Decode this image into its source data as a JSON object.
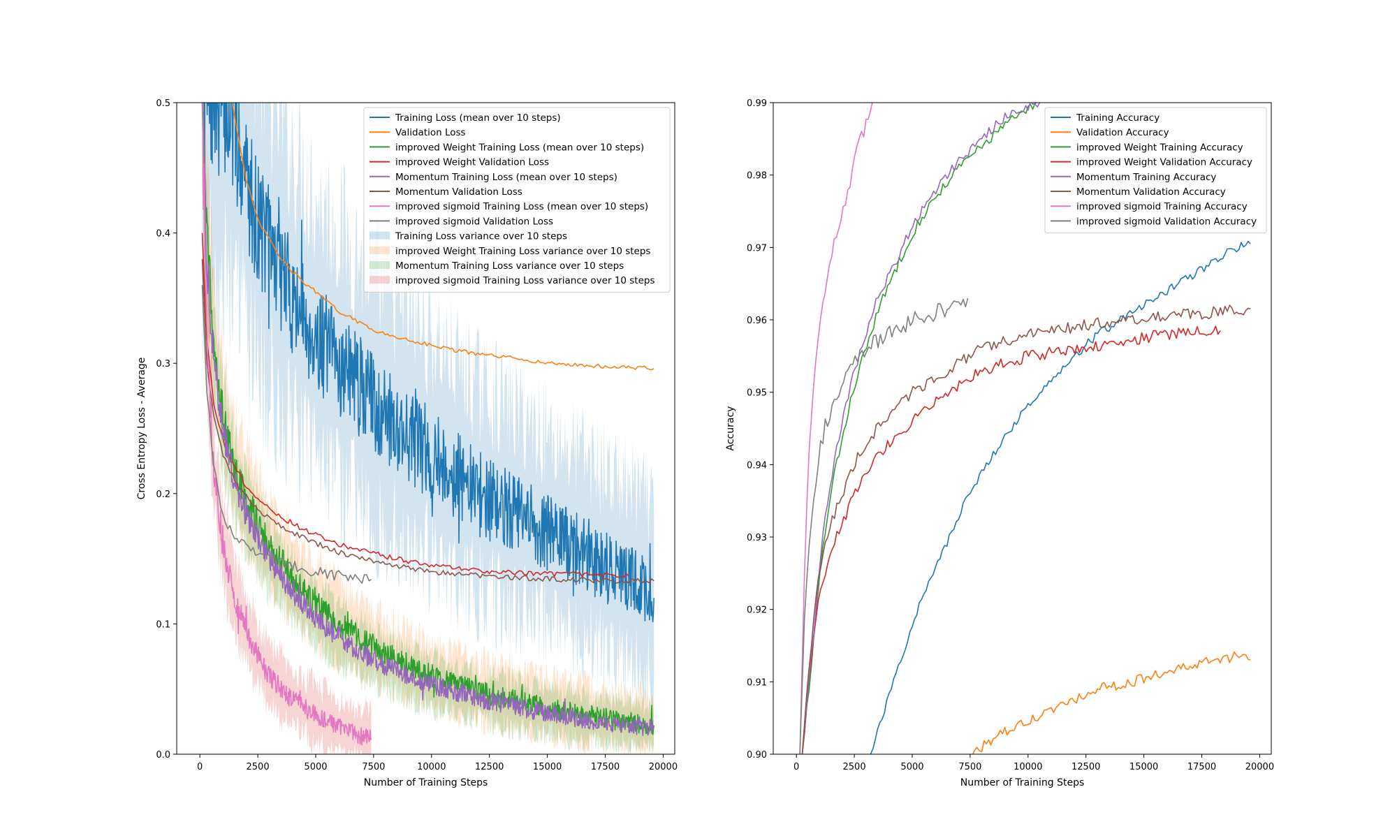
{
  "chart_data": [
    {
      "type": "line",
      "xlabel": "Number of Training Steps",
      "ylabel": "Cross Entropy Loss - Average",
      "xlim": [
        -1000,
        20500
      ],
      "ylim": [
        0,
        0.5
      ],
      "xticks": [
        0,
        2500,
        5000,
        7500,
        10000,
        12500,
        15000,
        17500,
        20000
      ],
      "yticks": [
        0.0,
        0.1,
        0.2,
        0.3,
        0.4,
        0.5
      ],
      "legend_position": "top-right",
      "legend": [
        "Training Loss (mean over 10 steps)",
        "Validation Loss",
        "improved Weight Training Loss (mean over 10 steps)",
        "improved Weight Validation Loss",
        "Momentum Training Loss (mean over 10 steps)",
        "Momentum Validation Loss",
        "improved sigmoid Training Loss (mean over 10 steps)",
        "improved sigmoid Validation Loss",
        "Training Loss variance over 10 steps",
        "improved Weight Training Loss variance over 10 steps",
        "Momentum Training Loss variance over 10 steps",
        "improved sigmoid Training Loss variance over 10 steps"
      ],
      "series": [
        {
          "name": "Training Loss (mean over 10 steps)",
          "color": "#1f77b4",
          "kind": "noisy",
          "x": [
            100,
            500,
            1000,
            1500,
            2000,
            2500,
            3000,
            4000,
            5000,
            6000,
            7000,
            8000,
            9000,
            10000,
            11000,
            12000,
            13000,
            14000,
            15000,
            16000,
            17000,
            18000,
            19000,
            19600
          ],
          "y": [
            0.5,
            0.5,
            0.5,
            0.48,
            0.44,
            0.41,
            0.39,
            0.35,
            0.32,
            0.3,
            0.28,
            0.26,
            0.245,
            0.23,
            0.215,
            0.2,
            0.19,
            0.18,
            0.17,
            0.16,
            0.15,
            0.14,
            0.13,
            0.12
          ],
          "noise": 0.035
        },
        {
          "name": "Validation Loss",
          "color": "#ff7f0e",
          "kind": "line",
          "x": [
            1400,
            1600,
            1800,
            2000,
            2500,
            3000,
            3500,
            4000,
            4500,
            5000,
            5500,
            6000,
            6500,
            7000,
            7500,
            8000,
            9000,
            10000,
            11000,
            12000,
            13000,
            14000,
            15000,
            16000,
            17000,
            18000,
            19000,
            19600
          ],
          "y": [
            0.5,
            0.48,
            0.46,
            0.44,
            0.41,
            0.395,
            0.38,
            0.37,
            0.362,
            0.355,
            0.347,
            0.34,
            0.335,
            0.33,
            0.326,
            0.322,
            0.318,
            0.314,
            0.31,
            0.307,
            0.305,
            0.303,
            0.3,
            0.299,
            0.298,
            0.297,
            0.2965,
            0.296
          ],
          "noise": 0.0015
        },
        {
          "name": "improved Weight Training Loss (mean over 10 steps)",
          "color": "#2ca02c",
          "kind": "noisy",
          "x": [
            100,
            300,
            600,
            1000,
            1500,
            2000,
            3000,
            4000,
            5000,
            6000,
            7000,
            8000,
            9000,
            10000,
            12000,
            14000,
            16000,
            18000,
            19600
          ],
          "y": [
            0.5,
            0.4,
            0.32,
            0.26,
            0.22,
            0.195,
            0.16,
            0.135,
            0.115,
            0.1,
            0.088,
            0.077,
            0.068,
            0.06,
            0.048,
            0.04,
            0.032,
            0.026,
            0.022
          ],
          "noise": 0.014
        },
        {
          "name": "improved Weight Validation Loss",
          "color": "#d62728",
          "kind": "line",
          "x": [
            100,
            300,
            600,
            1000,
            1500,
            2000,
            2500,
            3000,
            4000,
            5000,
            6000,
            7000,
            8000,
            9000,
            10000,
            12000,
            14000,
            16000,
            18000,
            18500
          ],
          "y": [
            0.4,
            0.32,
            0.27,
            0.24,
            0.22,
            0.206,
            0.196,
            0.188,
            0.177,
            0.168,
            0.161,
            0.156,
            0.152,
            0.148,
            0.145,
            0.141,
            0.139,
            0.138,
            0.137,
            0.137
          ],
          "noise": 0.002
        },
        {
          "name": "Momentum Training Loss (mean over 10 steps)",
          "color": "#9467bd",
          "kind": "noisy",
          "x": [
            100,
            300,
            600,
            1000,
            1500,
            2000,
            3000,
            4000,
            5000,
            6000,
            7000,
            8000,
            9000,
            10000,
            12000,
            14000,
            16000,
            18000,
            19600
          ],
          "y": [
            0.5,
            0.38,
            0.3,
            0.25,
            0.21,
            0.185,
            0.15,
            0.125,
            0.105,
            0.09,
            0.078,
            0.068,
            0.06,
            0.053,
            0.043,
            0.035,
            0.028,
            0.023,
            0.02
          ],
          "noise": 0.012
        },
        {
          "name": "Momentum Validation Loss",
          "color": "#8c564b",
          "kind": "line",
          "x": [
            100,
            300,
            600,
            1000,
            1500,
            2000,
            2500,
            3000,
            4000,
            5000,
            6000,
            7000,
            8000,
            9000,
            10000,
            12000,
            14000,
            16000,
            18000,
            19600
          ],
          "y": [
            0.38,
            0.3,
            0.26,
            0.23,
            0.21,
            0.198,
            0.188,
            0.181,
            0.17,
            0.162,
            0.155,
            0.15,
            0.146,
            0.143,
            0.14,
            0.137,
            0.135,
            0.134,
            0.133,
            0.133
          ],
          "noise": 0.002
        },
        {
          "name": "improved sigmoid Training Loss (mean over 10 steps)",
          "color": "#e377c2",
          "kind": "noisy",
          "x": [
            100,
            300,
            600,
            1000,
            1500,
            2000,
            2500,
            3000,
            4000,
            5000,
            6000,
            7000,
            7400
          ],
          "y": [
            0.5,
            0.32,
            0.22,
            0.16,
            0.12,
            0.095,
            0.075,
            0.06,
            0.042,
            0.03,
            0.02,
            0.014,
            0.012
          ],
          "noise": 0.013
        },
        {
          "name": "improved sigmoid Validation Loss",
          "color": "#7f7f7f",
          "kind": "line",
          "x": [
            100,
            300,
            600,
            900,
            1200,
            1500,
            2000,
            2500,
            3000,
            4000,
            5000,
            6000,
            7000,
            7400
          ],
          "y": [
            0.36,
            0.28,
            0.22,
            0.19,
            0.175,
            0.168,
            0.16,
            0.155,
            0.15,
            0.145,
            0.14,
            0.137,
            0.135,
            0.134
          ],
          "noise": 0.004
        }
      ],
      "bands": [
        {
          "name": "Training Loss variance over 10 steps",
          "color": "#1f77b4",
          "of": 0,
          "spread": 0.13
        },
        {
          "name": "improved Weight Training Loss variance over 10 steps",
          "color": "#ff7f0e",
          "of": 2,
          "spread": 0.06
        },
        {
          "name": "Momentum Training Loss variance over 10 steps",
          "color": "#2ca02c",
          "of": 4,
          "spread": 0.05
        },
        {
          "name": "improved sigmoid Training Loss variance over 10 steps",
          "color": "#d62728",
          "of": 6,
          "spread": 0.06
        }
      ]
    },
    {
      "type": "line",
      "xlabel": "Number of Training Steps",
      "ylabel": "Accuracy",
      "xlim": [
        -1000,
        20500
      ],
      "ylim": [
        0.9,
        0.99
      ],
      "xticks": [
        0,
        2500,
        5000,
        7500,
        10000,
        12500,
        15000,
        17500,
        20000
      ],
      "yticks": [
        0.9,
        0.91,
        0.92,
        0.93,
        0.94,
        0.95,
        0.96,
        0.97,
        0.98,
        0.99
      ],
      "legend_position": "top-right",
      "legend": [
        "Training Accuracy",
        "Validation Accuracy",
        "improved Weight Training Accuracy",
        "improved Weight Validation Accuracy",
        "Momentum Training Accuracy",
        "Momentum Validation Accuracy",
        "improved sigmoid Training Accuracy",
        "improved sigmoid Validation Accuracy"
      ],
      "series": [
        {
          "name": "Training Accuracy",
          "color": "#1f77b4",
          "kind": "line",
          "x": [
            3200,
            3600,
            4000,
            4500,
            5000,
            5500,
            6000,
            6500,
            7000,
            8000,
            9000,
            10000,
            11000,
            12000,
            13000,
            14000,
            15000,
            16000,
            17000,
            18000,
            19000,
            19600
          ],
          "y": [
            0.9,
            0.904,
            0.908,
            0.913,
            0.918,
            0.922,
            0.926,
            0.929,
            0.933,
            0.939,
            0.944,
            0.948,
            0.952,
            0.955,
            0.958,
            0.96,
            0.962,
            0.964,
            0.966,
            0.968,
            0.97,
            0.9705
          ],
          "noise": 0.0006
        },
        {
          "name": "Validation Accuracy",
          "color": "#ff7f0e",
          "kind": "line",
          "x": [
            7500,
            8000,
            9000,
            10000,
            11000,
            12000,
            13000,
            14000,
            15000,
            16000,
            17000,
            18000,
            19000,
            19600
          ],
          "y": [
            0.9,
            0.901,
            0.903,
            0.9045,
            0.906,
            0.9075,
            0.909,
            0.9095,
            0.9105,
            0.9115,
            0.912,
            0.913,
            0.9135,
            0.913
          ],
          "noise": 0.0007
        },
        {
          "name": "improved Weight Training Accuracy",
          "color": "#2ca02c",
          "kind": "line",
          "x": [
            250,
            400,
            600,
            800,
            1000,
            1300,
            1600,
            2000,
            2500,
            3000,
            3500,
            4000,
            5000,
            6000,
            7000,
            8000,
            9000,
            10000,
            10500
          ],
          "y": [
            0.9,
            0.905,
            0.91,
            0.918,
            0.925,
            0.932,
            0.938,
            0.944,
            0.951,
            0.956,
            0.961,
            0.965,
            0.972,
            0.977,
            0.981,
            0.984,
            0.987,
            0.989,
            0.99
          ],
          "noise": 0.0007
        },
        {
          "name": "improved Weight Validation Accuracy",
          "color": "#d62728",
          "kind": "line",
          "x": [
            250,
            400,
            600,
            800,
            1000,
            1300,
            1600,
            2000,
            2500,
            3000,
            3500,
            4000,
            5000,
            6000,
            7000,
            8000,
            9000,
            10000,
            12000,
            14000,
            16000,
            18000,
            18300
          ],
          "y": [
            0.9,
            0.905,
            0.912,
            0.918,
            0.922,
            0.926,
            0.929,
            0.932,
            0.936,
            0.939,
            0.941,
            0.943,
            0.946,
            0.949,
            0.951,
            0.953,
            0.954,
            0.955,
            0.956,
            0.957,
            0.958,
            0.9585,
            0.9585
          ],
          "noise": 0.0008
        },
        {
          "name": "Momentum Training Accuracy",
          "color": "#9467bd",
          "kind": "line",
          "x": [
            250,
            400,
            600,
            800,
            1000,
            1300,
            1600,
            2000,
            2500,
            3000,
            3500,
            4000,
            5000,
            6000,
            7000,
            8000,
            9000,
            10000,
            10500
          ],
          "y": [
            0.9,
            0.906,
            0.912,
            0.919,
            0.926,
            0.934,
            0.94,
            0.946,
            0.953,
            0.958,
            0.963,
            0.966,
            0.973,
            0.978,
            0.982,
            0.985,
            0.988,
            0.9895,
            0.99
          ],
          "noise": 0.0007
        },
        {
          "name": "Momentum Validation Accuracy",
          "color": "#8c564b",
          "kind": "line",
          "x": [
            250,
            400,
            600,
            800,
            1000,
            1300,
            1600,
            2000,
            2500,
            3000,
            3500,
            4000,
            5000,
            6000,
            7000,
            8000,
            9000,
            10000,
            12000,
            14000,
            16000,
            18000,
            19600
          ],
          "y": [
            0.9,
            0.907,
            0.914,
            0.92,
            0.925,
            0.93,
            0.933,
            0.936,
            0.94,
            0.943,
            0.945,
            0.947,
            0.95,
            0.952,
            0.954,
            0.956,
            0.957,
            0.958,
            0.959,
            0.96,
            0.9605,
            0.961,
            0.9615
          ],
          "noise": 0.0008
        },
        {
          "name": "improved sigmoid Training Accuracy",
          "color": "#e377c2",
          "kind": "line",
          "x": [
            150,
            300,
            450,
            600,
            800,
            1000,
            1300,
            1600,
            2000,
            2300,
            2600,
            3000,
            3400
          ],
          "y": [
            0.9,
            0.92,
            0.935,
            0.945,
            0.953,
            0.96,
            0.966,
            0.97,
            0.975,
            0.978,
            0.983,
            0.987,
            0.99
          ],
          "noise": 0.0012
        },
        {
          "name": "improved sigmoid Validation Accuracy",
          "color": "#7f7f7f",
          "kind": "line",
          "x": [
            150,
            300,
            450,
            600,
            800,
            1000,
            1300,
            1600,
            2000,
            2500,
            3000,
            3500,
            4000,
            5000,
            6000,
            7000,
            7400
          ],
          "y": [
            0.9,
            0.915,
            0.925,
            0.932,
            0.937,
            0.942,
            0.946,
            0.948,
            0.951,
            0.954,
            0.956,
            0.957,
            0.958,
            0.96,
            0.961,
            0.962,
            0.963
          ],
          "noise": 0.0012
        }
      ]
    }
  ]
}
